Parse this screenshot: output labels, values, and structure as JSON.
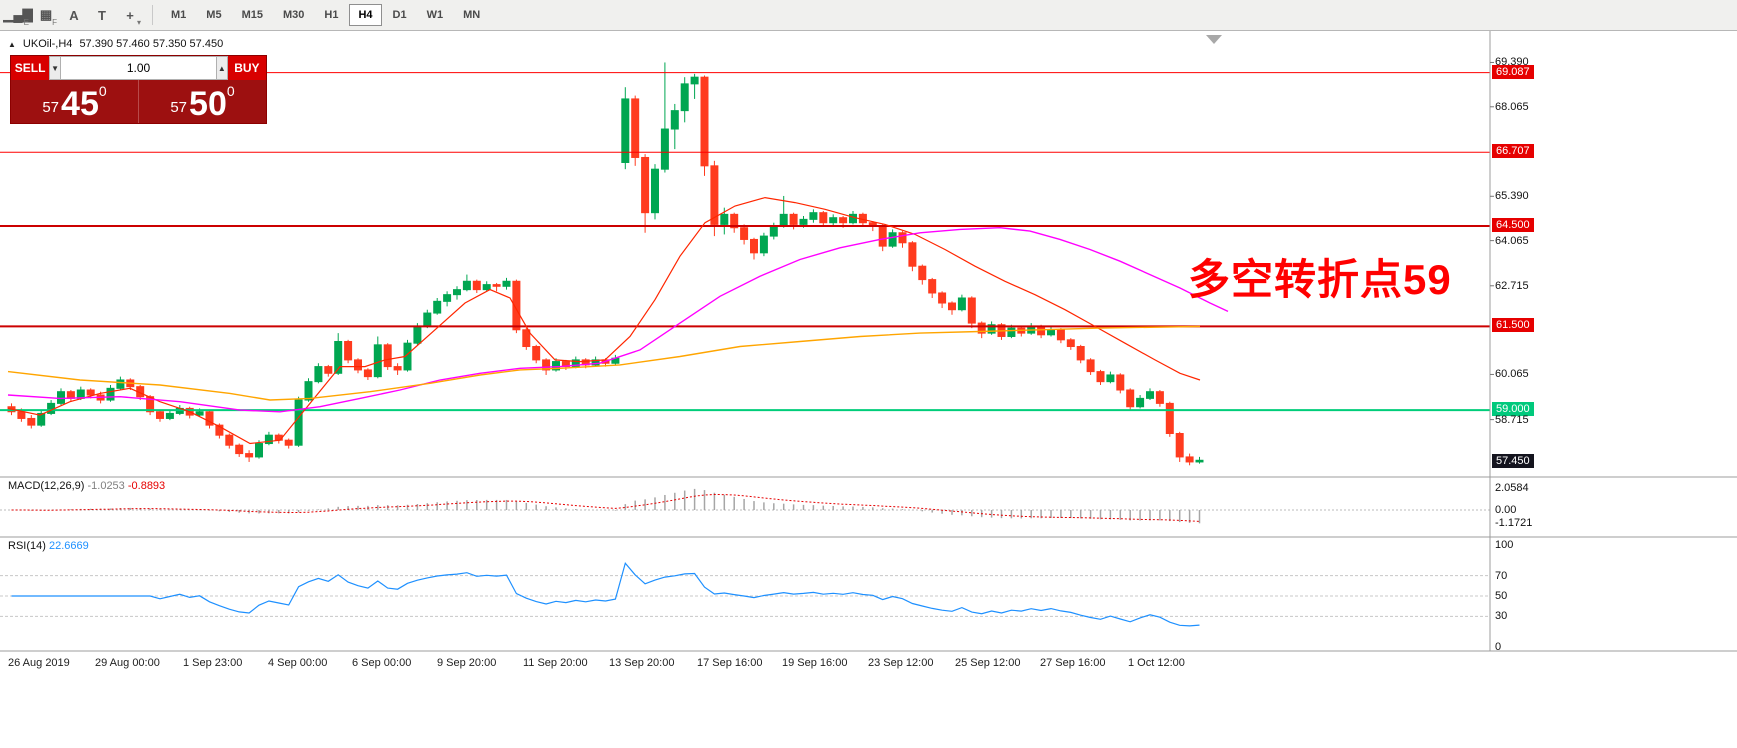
{
  "toolbar": {
    "tools": [
      {
        "name": "bar-chart-icon",
        "glyph": "▁▄▇",
        "sub": "E"
      },
      {
        "name": "volume-grid-icon",
        "glyph": "▦",
        "sub": "F"
      },
      {
        "name": "text-label-tool-icon",
        "glyph": "A",
        "sub": ""
      },
      {
        "name": "text-box-tool-icon",
        "glyph": "T",
        "sub": ""
      },
      {
        "name": "crosshair-tool-dropdown-icon",
        "glyph": "+",
        "sub": "▾"
      }
    ],
    "timeframes": [
      "M1",
      "M5",
      "M15",
      "M30",
      "H1",
      "H4",
      "D1",
      "W1",
      "MN"
    ],
    "active_timeframe": "H4"
  },
  "symbol_bar": {
    "collapse_icon": "▲",
    "symbol": "UKOil-,H4",
    "ohlc": "57.390 57.460 57.350 57.450"
  },
  "trade_panel": {
    "sell_label": "SELL",
    "buy_label": "BUY",
    "volume": "1.00",
    "spin_down": "▼",
    "spin_up": "▲",
    "sell_price": {
      "int": "57",
      "big": "45",
      "sup": "0"
    },
    "buy_price": {
      "int": "57",
      "big": "50",
      "sup": "0"
    }
  },
  "annotation": {
    "text": "多空转折点59",
    "color": "#ff0000"
  },
  "macd": {
    "label": "MACD(12,26,9)",
    "value_main": "-1.0253",
    "value_signal": "-0.8893",
    "axis_labels": [
      "2.0584",
      "0.00",
      "-1.1721"
    ],
    "fast": 12,
    "slow": 26,
    "signal": 9,
    "histogram_color": "#a6a6a6",
    "signal_color": "#e60000"
  },
  "rsi": {
    "label": "RSI(14)",
    "value": "22.6669",
    "axis_labels": [
      "100",
      "70",
      "50",
      "30",
      "0"
    ],
    "period": 14,
    "levels": [
      70,
      50,
      30
    ],
    "line_color": "#1e90ff"
  },
  "chart_data": {
    "type": "candlestick",
    "symbol": "UKOil-,H4",
    "timeframe": "H4",
    "current_price": "57.450",
    "y_axis": {
      "top_price": 70.33,
      "bottom_price": 57.0
    },
    "colors": {
      "up": "#00a651",
      "down": "#ff3b1e"
    },
    "price_labels": [
      {
        "text": "69.390",
        "price": 69.39,
        "style": "plain"
      },
      {
        "text": "69.087",
        "price": 69.087,
        "style": "red-badge"
      },
      {
        "text": "68.065",
        "price": 68.065,
        "style": "plain"
      },
      {
        "text": "66.707",
        "price": 66.707,
        "style": "red-badge"
      },
      {
        "text": "65.390",
        "price": 65.39,
        "style": "plain"
      },
      {
        "text": "64.500",
        "price": 64.5,
        "style": "red-badge"
      },
      {
        "text": "64.065",
        "price": 64.065,
        "style": "plain"
      },
      {
        "text": "62.715",
        "price": 62.715,
        "style": "plain"
      },
      {
        "text": "61.500",
        "price": 61.5,
        "style": "red-badge"
      },
      {
        "text": "60.065",
        "price": 60.065,
        "style": "plain"
      },
      {
        "text": "59.000",
        "price": 59.0,
        "style": "green-badge"
      },
      {
        "text": "58.715",
        "price": 58.715,
        "style": "plain"
      },
      {
        "text": "57.450",
        "price": 57.45,
        "style": "dark-badge"
      }
    ],
    "levels": [
      {
        "price": 69.087,
        "color": "#ff0000",
        "width": 1
      },
      {
        "price": 66.707,
        "color": "#ff0000",
        "width": 1
      },
      {
        "price": 64.5,
        "color": "#cc0000",
        "width": 2
      },
      {
        "price": 61.5,
        "color": "#cc0000",
        "width": 2
      },
      {
        "price": 59.0,
        "color": "#00cd7a",
        "width": 2
      }
    ],
    "candles": [
      [
        59.1,
        59.2,
        58.85,
        58.95
      ],
      [
        58.95,
        59.05,
        58.65,
        58.75
      ],
      [
        58.75,
        58.85,
        58.45,
        58.55
      ],
      [
        58.55,
        58.98,
        58.5,
        58.9
      ],
      [
        58.9,
        59.3,
        58.85,
        59.2
      ],
      [
        59.2,
        59.65,
        59.15,
        59.55
      ],
      [
        59.55,
        59.6,
        59.25,
        59.35
      ],
      [
        59.35,
        59.7,
        59.3,
        59.6
      ],
      [
        59.6,
        59.65,
        59.35,
        59.45
      ],
      [
        59.45,
        59.55,
        59.2,
        59.3
      ],
      [
        59.3,
        59.75,
        59.25,
        59.65
      ],
      [
        59.65,
        60.0,
        59.6,
        59.9
      ],
      [
        59.9,
        59.95,
        59.6,
        59.7
      ],
      [
        59.7,
        59.75,
        59.3,
        59.4
      ],
      [
        59.4,
        59.45,
        58.85,
        58.95
      ],
      [
        58.95,
        59.0,
        58.65,
        58.75
      ],
      [
        58.75,
        59.0,
        58.7,
        58.9
      ],
      [
        58.9,
        59.15,
        58.85,
        59.05
      ],
      [
        59.05,
        59.1,
        58.75,
        58.85
      ],
      [
        58.85,
        59.05,
        58.8,
        58.95
      ],
      [
        58.95,
        59.0,
        58.45,
        58.55
      ],
      [
        58.55,
        58.6,
        58.15,
        58.25
      ],
      [
        58.25,
        58.3,
        57.85,
        57.95
      ],
      [
        57.95,
        58.0,
        57.6,
        57.7
      ],
      [
        57.7,
        57.8,
        57.45,
        57.6
      ],
      [
        57.6,
        58.1,
        57.55,
        58.0
      ],
      [
        58.0,
        58.35,
        57.95,
        58.25
      ],
      [
        58.25,
        58.3,
        58.0,
        58.1
      ],
      [
        58.1,
        58.15,
        57.85,
        57.95
      ],
      [
        57.95,
        59.4,
        57.9,
        59.3
      ],
      [
        59.3,
        59.95,
        59.25,
        59.85
      ],
      [
        59.85,
        60.4,
        59.8,
        60.3
      ],
      [
        60.3,
        60.35,
        60.0,
        60.1
      ],
      [
        60.1,
        61.3,
        60.05,
        61.05
      ],
      [
        61.05,
        61.1,
        60.4,
        60.5
      ],
      [
        60.5,
        60.55,
        60.1,
        60.2
      ],
      [
        60.2,
        60.25,
        59.9,
        60.0
      ],
      [
        60.0,
        61.2,
        59.95,
        60.95
      ],
      [
        60.95,
        61.0,
        60.2,
        60.3
      ],
      [
        60.3,
        60.4,
        60.05,
        60.2
      ],
      [
        60.2,
        61.1,
        60.15,
        61.0
      ],
      [
        61.0,
        61.6,
        60.95,
        61.5
      ],
      [
        61.5,
        62.0,
        61.45,
        61.9
      ],
      [
        61.9,
        62.35,
        61.85,
        62.25
      ],
      [
        62.25,
        62.55,
        62.1,
        62.45
      ],
      [
        62.45,
        62.7,
        62.3,
        62.6
      ],
      [
        62.6,
        63.05,
        62.55,
        62.85
      ],
      [
        62.85,
        62.9,
        62.5,
        62.6
      ],
      [
        62.6,
        62.85,
        62.55,
        62.75
      ],
      [
        62.75,
        62.8,
        62.55,
        62.7
      ],
      [
        62.7,
        62.95,
        62.6,
        62.85
      ],
      [
        62.85,
        62.9,
        61.3,
        61.4
      ],
      [
        61.4,
        61.45,
        60.8,
        60.9
      ],
      [
        60.9,
        60.95,
        60.4,
        60.5
      ],
      [
        60.5,
        60.55,
        60.05,
        60.2
      ],
      [
        60.2,
        60.55,
        60.15,
        60.45
      ],
      [
        60.45,
        60.5,
        60.2,
        60.3
      ],
      [
        60.3,
        60.6,
        60.25,
        60.5
      ],
      [
        60.5,
        60.55,
        60.25,
        60.35
      ],
      [
        60.35,
        60.6,
        60.3,
        60.5
      ],
      [
        60.5,
        60.55,
        60.3,
        60.4
      ],
      [
        60.4,
        60.65,
        60.35,
        60.55
      ],
      [
        66.4,
        68.65,
        66.2,
        68.3
      ],
      [
        68.3,
        68.4,
        66.3,
        66.55
      ],
      [
        66.55,
        66.65,
        64.3,
        64.9
      ],
      [
        64.9,
        66.35,
        64.7,
        66.2
      ],
      [
        66.2,
        69.39,
        66.1,
        67.4
      ],
      [
        67.4,
        68.15,
        66.8,
        67.95
      ],
      [
        67.95,
        68.95,
        67.6,
        68.75
      ],
      [
        68.75,
        69.05,
        68.3,
        68.95
      ],
      [
        68.95,
        69.0,
        66.0,
        66.3
      ],
      [
        66.3,
        66.45,
        64.2,
        64.55
      ],
      [
        64.55,
        65.05,
        64.25,
        64.85
      ],
      [
        64.85,
        64.9,
        64.3,
        64.45
      ],
      [
        64.45,
        64.55,
        63.95,
        64.1
      ],
      [
        64.1,
        64.15,
        63.5,
        63.7
      ],
      [
        63.7,
        64.3,
        63.6,
        64.2
      ],
      [
        64.2,
        64.6,
        64.1,
        64.5
      ],
      [
        64.5,
        65.4,
        64.45,
        64.85
      ],
      [
        64.85,
        64.9,
        64.4,
        64.55
      ],
      [
        64.55,
        64.8,
        64.45,
        64.7
      ],
      [
        64.7,
        65.0,
        64.6,
        64.9
      ],
      [
        64.9,
        64.95,
        64.5,
        64.6
      ],
      [
        64.6,
        64.85,
        64.5,
        64.75
      ],
      [
        64.75,
        64.8,
        64.45,
        64.6
      ],
      [
        64.6,
        64.95,
        64.55,
        64.85
      ],
      [
        64.85,
        64.9,
        64.5,
        64.6
      ],
      [
        64.6,
        64.65,
        64.35,
        64.5
      ],
      [
        64.5,
        64.55,
        63.75,
        63.9
      ],
      [
        63.9,
        64.4,
        63.85,
        64.3
      ],
      [
        64.3,
        64.35,
        63.85,
        64.0
      ],
      [
        64.0,
        64.05,
        63.15,
        63.3
      ],
      [
        63.3,
        63.35,
        62.75,
        62.9
      ],
      [
        62.9,
        62.95,
        62.35,
        62.5
      ],
      [
        62.5,
        62.55,
        62.05,
        62.2
      ],
      [
        62.2,
        62.25,
        61.85,
        62.0
      ],
      [
        62.0,
        62.45,
        61.95,
        62.35
      ],
      [
        62.35,
        62.4,
        61.45,
        61.6
      ],
      [
        61.6,
        61.65,
        61.15,
        61.3
      ],
      [
        61.3,
        61.65,
        61.25,
        61.55
      ],
      [
        61.55,
        61.6,
        61.1,
        61.2
      ],
      [
        61.2,
        61.55,
        61.15,
        61.45
      ],
      [
        61.45,
        61.5,
        61.2,
        61.3
      ],
      [
        61.3,
        61.6,
        61.25,
        61.5
      ],
      [
        61.5,
        61.55,
        61.15,
        61.25
      ],
      [
        61.25,
        61.5,
        61.2,
        61.4
      ],
      [
        61.4,
        61.45,
        61.0,
        61.1
      ],
      [
        61.1,
        61.15,
        60.8,
        60.9
      ],
      [
        60.9,
        60.95,
        60.4,
        60.5
      ],
      [
        60.5,
        60.55,
        60.05,
        60.15
      ],
      [
        60.15,
        60.2,
        59.75,
        59.85
      ],
      [
        59.85,
        60.15,
        59.8,
        60.05
      ],
      [
        60.05,
        60.1,
        59.5,
        59.6
      ],
      [
        59.6,
        59.65,
        59.0,
        59.1
      ],
      [
        59.1,
        59.45,
        59.05,
        59.35
      ],
      [
        59.35,
        59.65,
        59.3,
        59.55
      ],
      [
        59.55,
        59.6,
        59.1,
        59.2
      ],
      [
        59.2,
        59.25,
        58.2,
        58.3
      ],
      [
        58.3,
        58.35,
        57.45,
        57.6
      ],
      [
        57.6,
        57.7,
        57.35,
        57.45
      ],
      [
        57.45,
        57.6,
        57.4,
        57.5
      ]
    ],
    "overlays": [
      {
        "name": "ma-fast",
        "color": "#ff2600",
        "width": 1.2,
        "points": [
          [
            8,
            59.05
          ],
          [
            40,
            58.85
          ],
          [
            70,
            59.25
          ],
          [
            100,
            59.5
          ],
          [
            130,
            59.65
          ],
          [
            160,
            59.25
          ],
          [
            190,
            58.95
          ],
          [
            220,
            58.5
          ],
          [
            250,
            58.0
          ],
          [
            280,
            58.1
          ],
          [
            310,
            59.2
          ],
          [
            340,
            60.3
          ],
          [
            365,
            60.3
          ],
          [
            385,
            60.5
          ],
          [
            405,
            60.6
          ],
          [
            435,
            61.4
          ],
          [
            465,
            62.2
          ],
          [
            490,
            62.6
          ],
          [
            510,
            62.35
          ],
          [
            530,
            61.3
          ],
          [
            555,
            60.5
          ],
          [
            580,
            60.45
          ],
          [
            605,
            60.5
          ],
          [
            630,
            61.2
          ],
          [
            655,
            62.3
          ],
          [
            680,
            63.6
          ],
          [
            705,
            64.6
          ],
          [
            735,
            65.1
          ],
          [
            765,
            65.35
          ],
          [
            795,
            65.2
          ],
          [
            825,
            65.0
          ],
          [
            855,
            64.75
          ],
          [
            885,
            64.55
          ],
          [
            915,
            64.25
          ],
          [
            945,
            63.8
          ],
          [
            975,
            63.3
          ],
          [
            1005,
            62.85
          ],
          [
            1035,
            62.45
          ],
          [
            1065,
            62.0
          ],
          [
            1095,
            61.5
          ],
          [
            1125,
            61.0
          ],
          [
            1155,
            60.5
          ],
          [
            1180,
            60.1
          ],
          [
            1200,
            59.9
          ]
        ]
      },
      {
        "name": "ma-mid",
        "color": "#ff00ff",
        "width": 1.4,
        "points": [
          [
            8,
            59.45
          ],
          [
            60,
            59.35
          ],
          [
            120,
            59.4
          ],
          [
            180,
            59.25
          ],
          [
            240,
            59.0
          ],
          [
            280,
            58.95
          ],
          [
            320,
            59.1
          ],
          [
            360,
            59.35
          ],
          [
            400,
            59.6
          ],
          [
            440,
            59.9
          ],
          [
            480,
            60.1
          ],
          [
            520,
            60.25
          ],
          [
            560,
            60.3
          ],
          [
            600,
            60.4
          ],
          [
            640,
            60.8
          ],
          [
            680,
            61.6
          ],
          [
            720,
            62.4
          ],
          [
            760,
            63.0
          ],
          [
            800,
            63.5
          ],
          [
            840,
            63.85
          ],
          [
            880,
            64.1
          ],
          [
            920,
            64.3
          ],
          [
            960,
            64.4
          ],
          [
            1000,
            64.45
          ],
          [
            1030,
            64.35
          ],
          [
            1060,
            64.1
          ],
          [
            1090,
            63.8
          ],
          [
            1120,
            63.45
          ],
          [
            1150,
            63.05
          ],
          [
            1180,
            62.65
          ],
          [
            1210,
            62.2
          ],
          [
            1228,
            61.95
          ]
        ]
      },
      {
        "name": "ma-slow",
        "color": "#ffa500",
        "width": 1.4,
        "points": [
          [
            8,
            60.15
          ],
          [
            80,
            59.9
          ],
          [
            160,
            59.75
          ],
          [
            230,
            59.5
          ],
          [
            270,
            59.3
          ],
          [
            310,
            59.35
          ],
          [
            370,
            59.55
          ],
          [
            430,
            59.8
          ],
          [
            480,
            60.05
          ],
          [
            520,
            60.2
          ],
          [
            560,
            60.25
          ],
          [
            620,
            60.35
          ],
          [
            680,
            60.6
          ],
          [
            740,
            60.9
          ],
          [
            800,
            61.05
          ],
          [
            860,
            61.2
          ],
          [
            920,
            61.3
          ],
          [
            980,
            61.35
          ],
          [
            1040,
            61.4
          ],
          [
            1100,
            61.45
          ],
          [
            1200,
            61.5
          ]
        ]
      }
    ],
    "x_ticks": [
      {
        "label": "26 Aug 2019",
        "x": 8
      },
      {
        "label": "29 Aug 00:00",
        "x": 95
      },
      {
        "label": "1 Sep 23:00",
        "x": 183
      },
      {
        "label": "4 Sep 00:00",
        "x": 268
      },
      {
        "label": "6 Sep 00:00",
        "x": 352
      },
      {
        "label": "9 Sep 20:00",
        "x": 437
      },
      {
        "label": "11 Sep 20:00",
        "x": 523
      },
      {
        "label": "13 Sep 20:00",
        "x": 609
      },
      {
        "label": "17 Sep 16:00",
        "x": 697
      },
      {
        "label": "19 Sep 16:00",
        "x": 782
      },
      {
        "label": "23 Sep 12:00",
        "x": 868
      },
      {
        "label": "25 Sep 12:00",
        "x": 955
      },
      {
        "label": "27 Sep 16:00",
        "x": 1040
      },
      {
        "label": "1 Oct 12:00",
        "x": 1128
      }
    ]
  }
}
